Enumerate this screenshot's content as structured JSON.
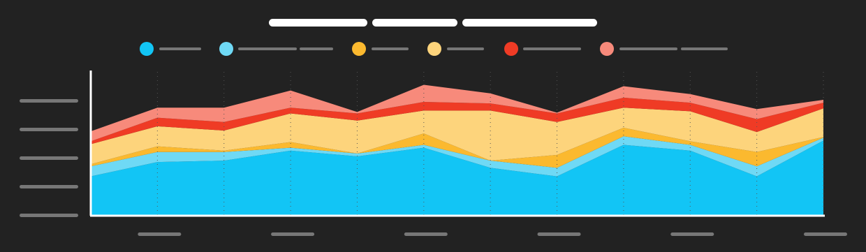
{
  "chart_data": {
    "type": "stacked_area",
    "categories": [
      null,
      null,
      null,
      null,
      null,
      null,
      null,
      null,
      null,
      null,
      null,
      null
    ],
    "ylim": [
      0,
      100
    ],
    "yticks": [
      0,
      20,
      40,
      60,
      80
    ],
    "grid": true,
    "series": [
      {
        "color": "#12c5f5",
        "values": [
          27,
          37,
          38,
          45,
          41,
          47,
          33,
          27,
          49,
          45,
          27,
          52
        ]
      },
      {
        "color": "#6fd9f5",
        "values": [
          7,
          7,
          6,
          2,
          2,
          2,
          5,
          6,
          6,
          4,
          7,
          2
        ]
      },
      {
        "color": "#fbb92f",
        "values": [
          1.5,
          4,
          1,
          4,
          0,
          8,
          0,
          9,
          6,
          2.5,
          10,
          0.5
        ]
      },
      {
        "color": "#fdd47c",
        "values": [
          14,
          14,
          14,
          20,
          23,
          16,
          35,
          23,
          14,
          21,
          14,
          20
        ]
      },
      {
        "color": "#ef3b25",
        "values": [
          2,
          6,
          6,
          4,
          5,
          6,
          5,
          6,
          7,
          6,
          9,
          4
        ]
      },
      {
        "color": "#f78a7b",
        "values": [
          7,
          7,
          10,
          12,
          1,
          12,
          7,
          0.5,
          8,
          6,
          7,
          2
        ]
      }
    ]
  }
}
